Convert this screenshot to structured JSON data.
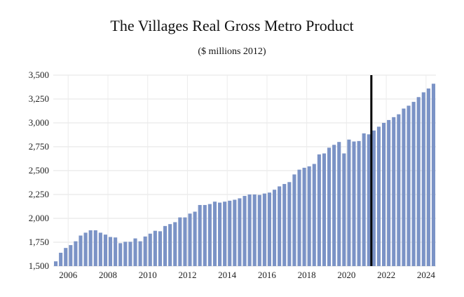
{
  "chart_data": {
    "type": "bar",
    "title": "The Villages Real Gross Metro Product",
    "subtitle": "($ millions 2012)",
    "xlabel": "",
    "ylabel": "",
    "ylim": [
      1500,
      3500
    ],
    "y_ticks": [
      "3,500",
      "3,250",
      "3,000",
      "2,750",
      "2,500",
      "2,250",
      "2,000",
      "1,750",
      "1,500"
    ],
    "y_tick_values": [
      3500,
      3250,
      3000,
      2750,
      2500,
      2250,
      2000,
      1750,
      1500
    ],
    "x_ticks": [
      "2006",
      "2008",
      "2010",
      "2012",
      "2014",
      "2016",
      "2018",
      "2020",
      "2022",
      "2024"
    ],
    "x_tick_values": [
      2006,
      2008,
      2010,
      2012,
      2014,
      2016,
      2018,
      2020,
      2022,
      2024
    ],
    "x_start": 2005.25,
    "bar_color": "#7b93c6",
    "marker_color": "#000000",
    "marker_x": 2021.25,
    "grid": true,
    "quarterly_values": [
      1550,
      1640,
      1690,
      1720,
      1760,
      1820,
      1850,
      1875,
      1875,
      1850,
      1830,
      1805,
      1800,
      1740,
      1755,
      1755,
      1790,
      1760,
      1810,
      1840,
      1870,
      1865,
      1920,
      1940,
      1960,
      2010,
      2010,
      2050,
      2070,
      2140,
      2140,
      2150,
      2175,
      2165,
      2175,
      2185,
      2195,
      2210,
      2235,
      2250,
      2250,
      2245,
      2260,
      2270,
      2300,
      2335,
      2360,
      2380,
      2460,
      2510,
      2530,
      2545,
      2570,
      2670,
      2680,
      2740,
      2770,
      2800,
      2680,
      2825,
      2805,
      2810,
      2890,
      2880,
      2920,
      2960,
      3000,
      3030,
      3060,
      3090,
      3150,
      3180,
      3220,
      3270,
      3320,
      3360,
      3410
    ]
  }
}
